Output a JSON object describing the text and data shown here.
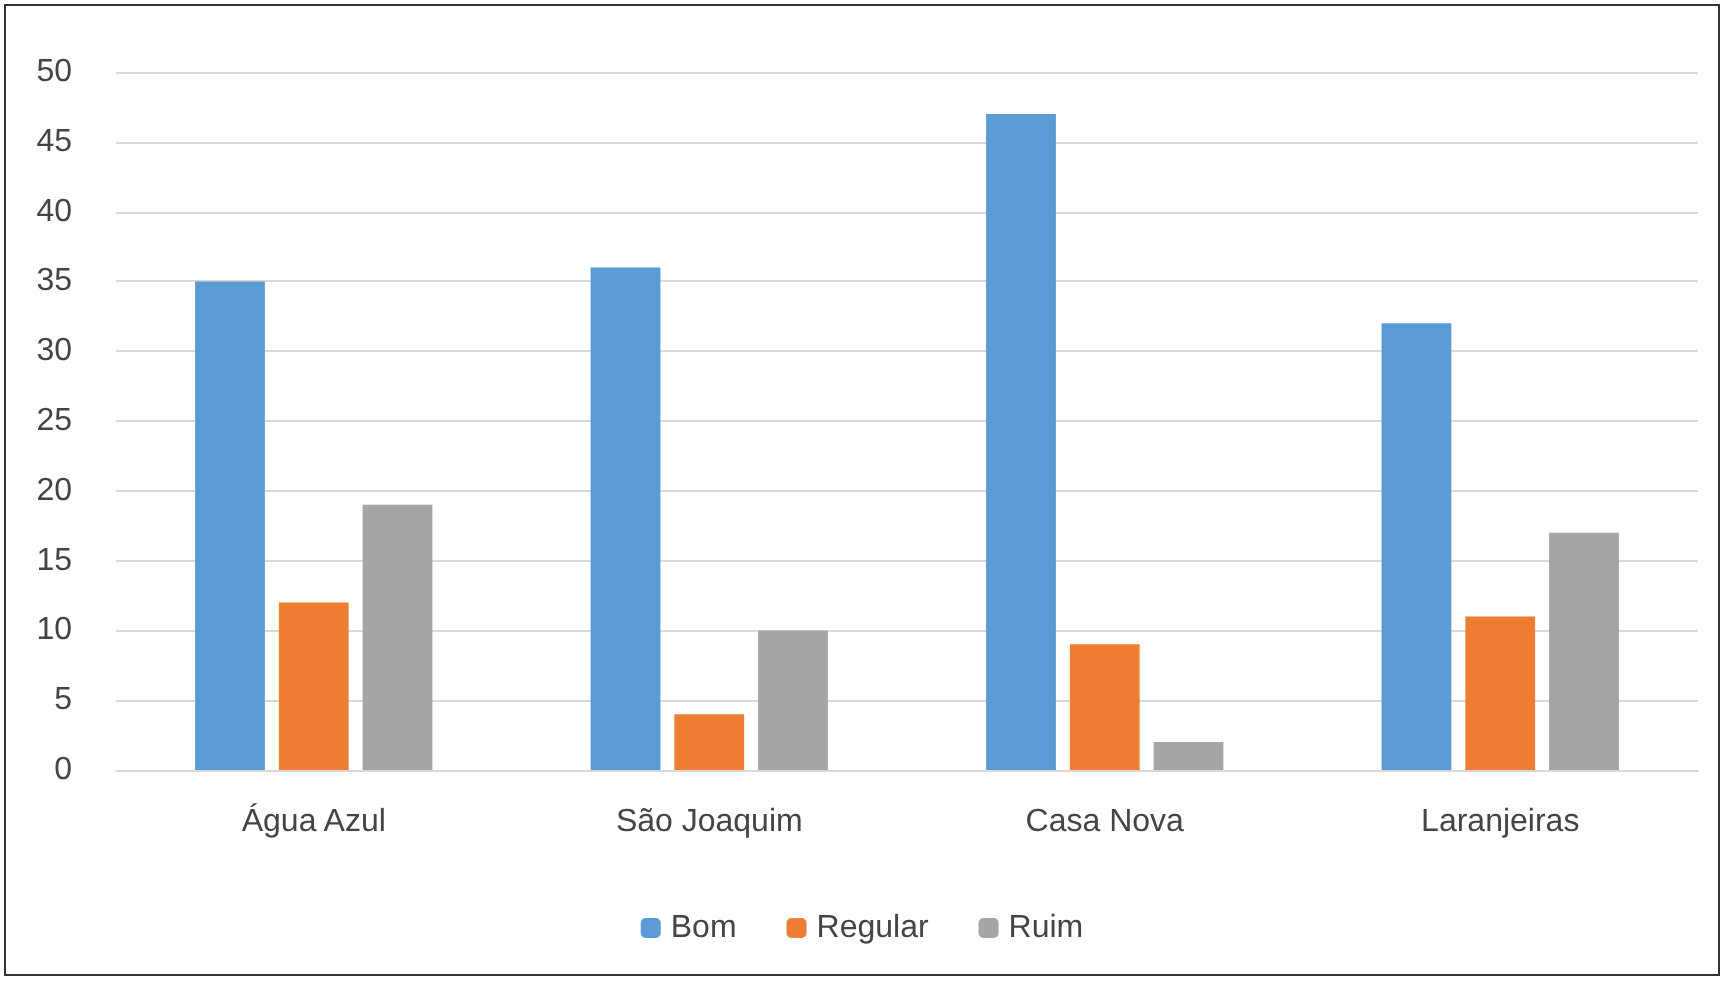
{
  "chart_data": {
    "type": "bar",
    "categories": [
      "Água Azul",
      "São Joaquim",
      "Casa Nova",
      "Laranjeiras"
    ],
    "series": [
      {
        "name": "Bom",
        "color": "#5b9bd5",
        "values": [
          35,
          36,
          47,
          32
        ]
      },
      {
        "name": "Regular",
        "color": "#ed7d31",
        "values": [
          12,
          4,
          9,
          11
        ]
      },
      {
        "name": "Ruim",
        "color": "#a5a5a5",
        "values": [
          19,
          10,
          2,
          17
        ]
      }
    ],
    "ylim": [
      0,
      50
    ],
    "yticks": [
      0,
      5,
      10,
      15,
      20,
      25,
      30,
      35,
      40,
      45,
      50
    ],
    "grid": "y",
    "legend": "bottom"
  }
}
